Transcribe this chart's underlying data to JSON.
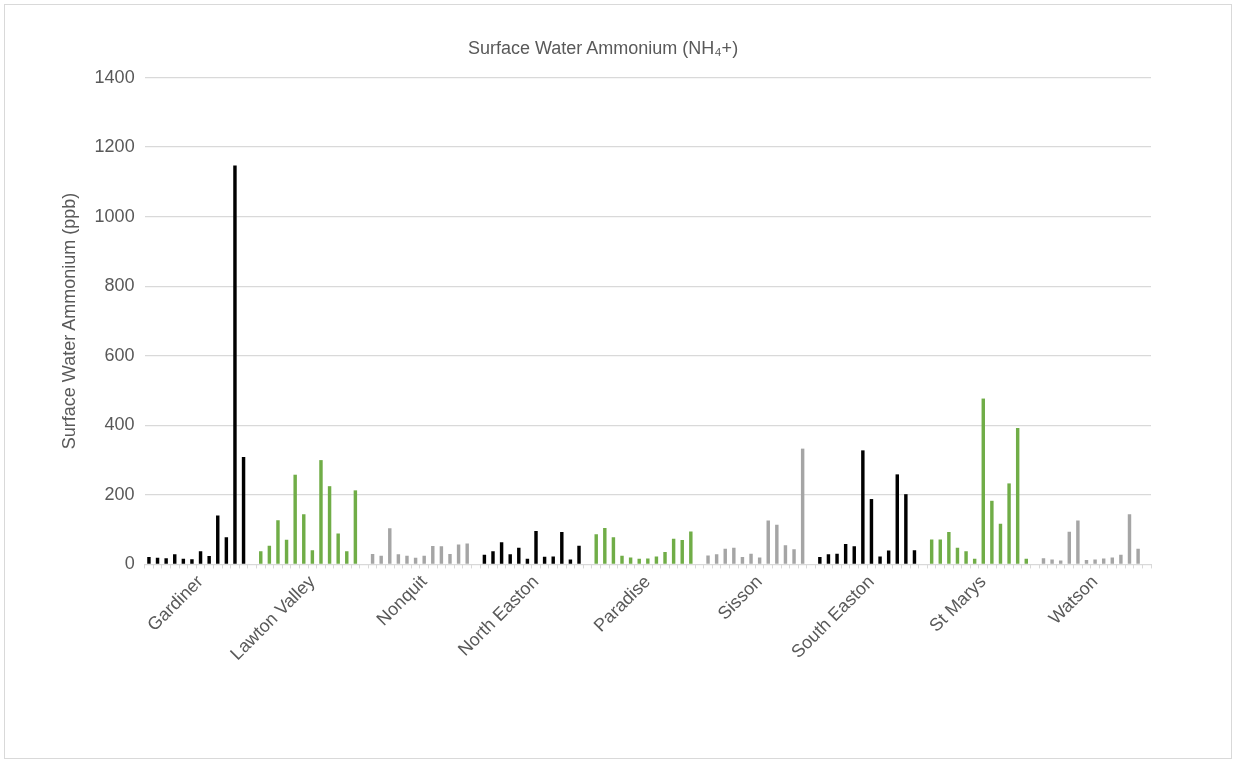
{
  "chart_data": {
    "type": "bar",
    "title": "Surface Water Ammonium (NH₄+)",
    "ylabel": "Surface Water Ammonium (ppb)",
    "categories": [
      null,
      null,
      null,
      null,
      null,
      null,
      "Gardiner",
      null,
      null,
      null,
      null,
      null,
      null,
      null,
      null,
      null,
      null,
      null,
      null,
      "Lawton Valley",
      null,
      null,
      null,
      null,
      null,
      null,
      null,
      null,
      null,
      null,
      null,
      null,
      "Nonquit",
      null,
      null,
      null,
      null,
      null,
      null,
      null,
      null,
      null,
      null,
      null,
      null,
      "North Easton",
      null,
      null,
      null,
      null,
      null,
      null,
      null,
      null,
      null,
      null,
      null,
      null,
      "Paradise",
      null,
      null,
      null,
      null,
      null,
      null,
      null,
      null,
      null,
      null,
      null,
      null,
      "Sisson",
      null,
      null,
      null,
      null,
      null,
      null,
      null,
      null,
      null,
      null,
      null,
      null,
      "South Easton",
      null,
      null,
      null,
      null,
      null,
      null,
      null,
      null,
      null,
      null,
      null,
      null,
      "St Marys",
      null,
      null,
      null,
      null,
      null,
      null,
      null,
      null,
      null,
      null,
      null,
      null,
      "Watson",
      null,
      null,
      null,
      null,
      null,
      null
    ],
    "values": [
      21,
      19,
      18,
      29,
      16,
      15,
      38,
      24,
      141,
      78,
      1147,
      309,
      null,
      38,
      54,
      127,
      71,
      258,
      144,
      41,
      300,
      225,
      89,
      38,
      213,
      null,
      30,
      25,
      104,
      29,
      25,
      19,
      25,
      53,
      52,
      30,
      57,
      60,
      null,
      28,
      38,
      64,
      29,
      48,
      16,
      96,
      22,
      23,
      93,
      14,
      54,
      null,
      87,
      105,
      78,
      25,
      20,
      16,
      17,
      23,
      36,
      74,
      70,
      95,
      null,
      26,
      29,
      45,
      48,
      21,
      31,
      20,
      126,
      114,
      55,
      44,
      333,
      null,
      21,
      29,
      31,
      59,
      52,
      328,
      188,
      23,
      40,
      259,
      202,
      41,
      null,
      72,
      72,
      93,
      48,
      38,
      16,
      477,
      183,
      117,
      233,
      392,
      16,
      null,
      18,
      14,
      11,
      94,
      126,
      13,
      14,
      17,
      20,
      28,
      144,
      45,
      null
    ],
    "colors": [
      "#000000",
      "#000000",
      "#000000",
      "#000000",
      "#000000",
      "#000000",
      "#000000",
      "#000000",
      "#000000",
      "#000000",
      "#000000",
      "#000000",
      null,
      "#70ad47",
      "#70ad47",
      "#70ad47",
      "#70ad47",
      "#70ad47",
      "#70ad47",
      "#70ad47",
      "#70ad47",
      "#70ad47",
      "#70ad47",
      "#70ad47",
      "#70ad47",
      null,
      "#a5a5a5",
      "#a5a5a5",
      "#a5a5a5",
      "#a5a5a5",
      "#a5a5a5",
      "#a5a5a5",
      "#a5a5a5",
      "#a5a5a5",
      "#a5a5a5",
      "#a5a5a5",
      "#a5a5a5",
      "#a5a5a5",
      null,
      "#000000",
      "#000000",
      "#000000",
      "#000000",
      "#000000",
      "#000000",
      "#000000",
      "#000000",
      "#000000",
      "#000000",
      "#000000",
      "#000000",
      null,
      "#70ad47",
      "#70ad47",
      "#70ad47",
      "#70ad47",
      "#70ad47",
      "#70ad47",
      "#70ad47",
      "#70ad47",
      "#70ad47",
      "#70ad47",
      "#70ad47",
      "#70ad47",
      null,
      "#a5a5a5",
      "#a5a5a5",
      "#a5a5a5",
      "#a5a5a5",
      "#a5a5a5",
      "#a5a5a5",
      "#a5a5a5",
      "#a5a5a5",
      "#a5a5a5",
      "#a5a5a5",
      "#a5a5a5",
      "#a5a5a5",
      null,
      "#000000",
      "#000000",
      "#000000",
      "#000000",
      "#000000",
      "#000000",
      "#000000",
      "#000000",
      "#000000",
      "#000000",
      "#000000",
      "#000000",
      null,
      "#70ad47",
      "#70ad47",
      "#70ad47",
      "#70ad47",
      "#70ad47",
      "#70ad47",
      "#70ad47",
      "#70ad47",
      "#70ad47",
      "#70ad47",
      "#70ad47",
      "#70ad47",
      null,
      "#a5a5a5",
      "#a5a5a5",
      "#a5a5a5",
      "#a5a5a5",
      "#a5a5a5",
      "#a5a5a5",
      "#a5a5a5",
      "#a5a5a5",
      "#a5a5a5",
      "#a5a5a5",
      "#a5a5a5",
      "#a5a5a5",
      null
    ],
    "ylim": [
      0,
      1400
    ],
    "yticks": [
      0,
      200,
      400,
      600,
      800,
      1000,
      1200,
      1400
    ],
    "grid": "y",
    "legend": false
  }
}
